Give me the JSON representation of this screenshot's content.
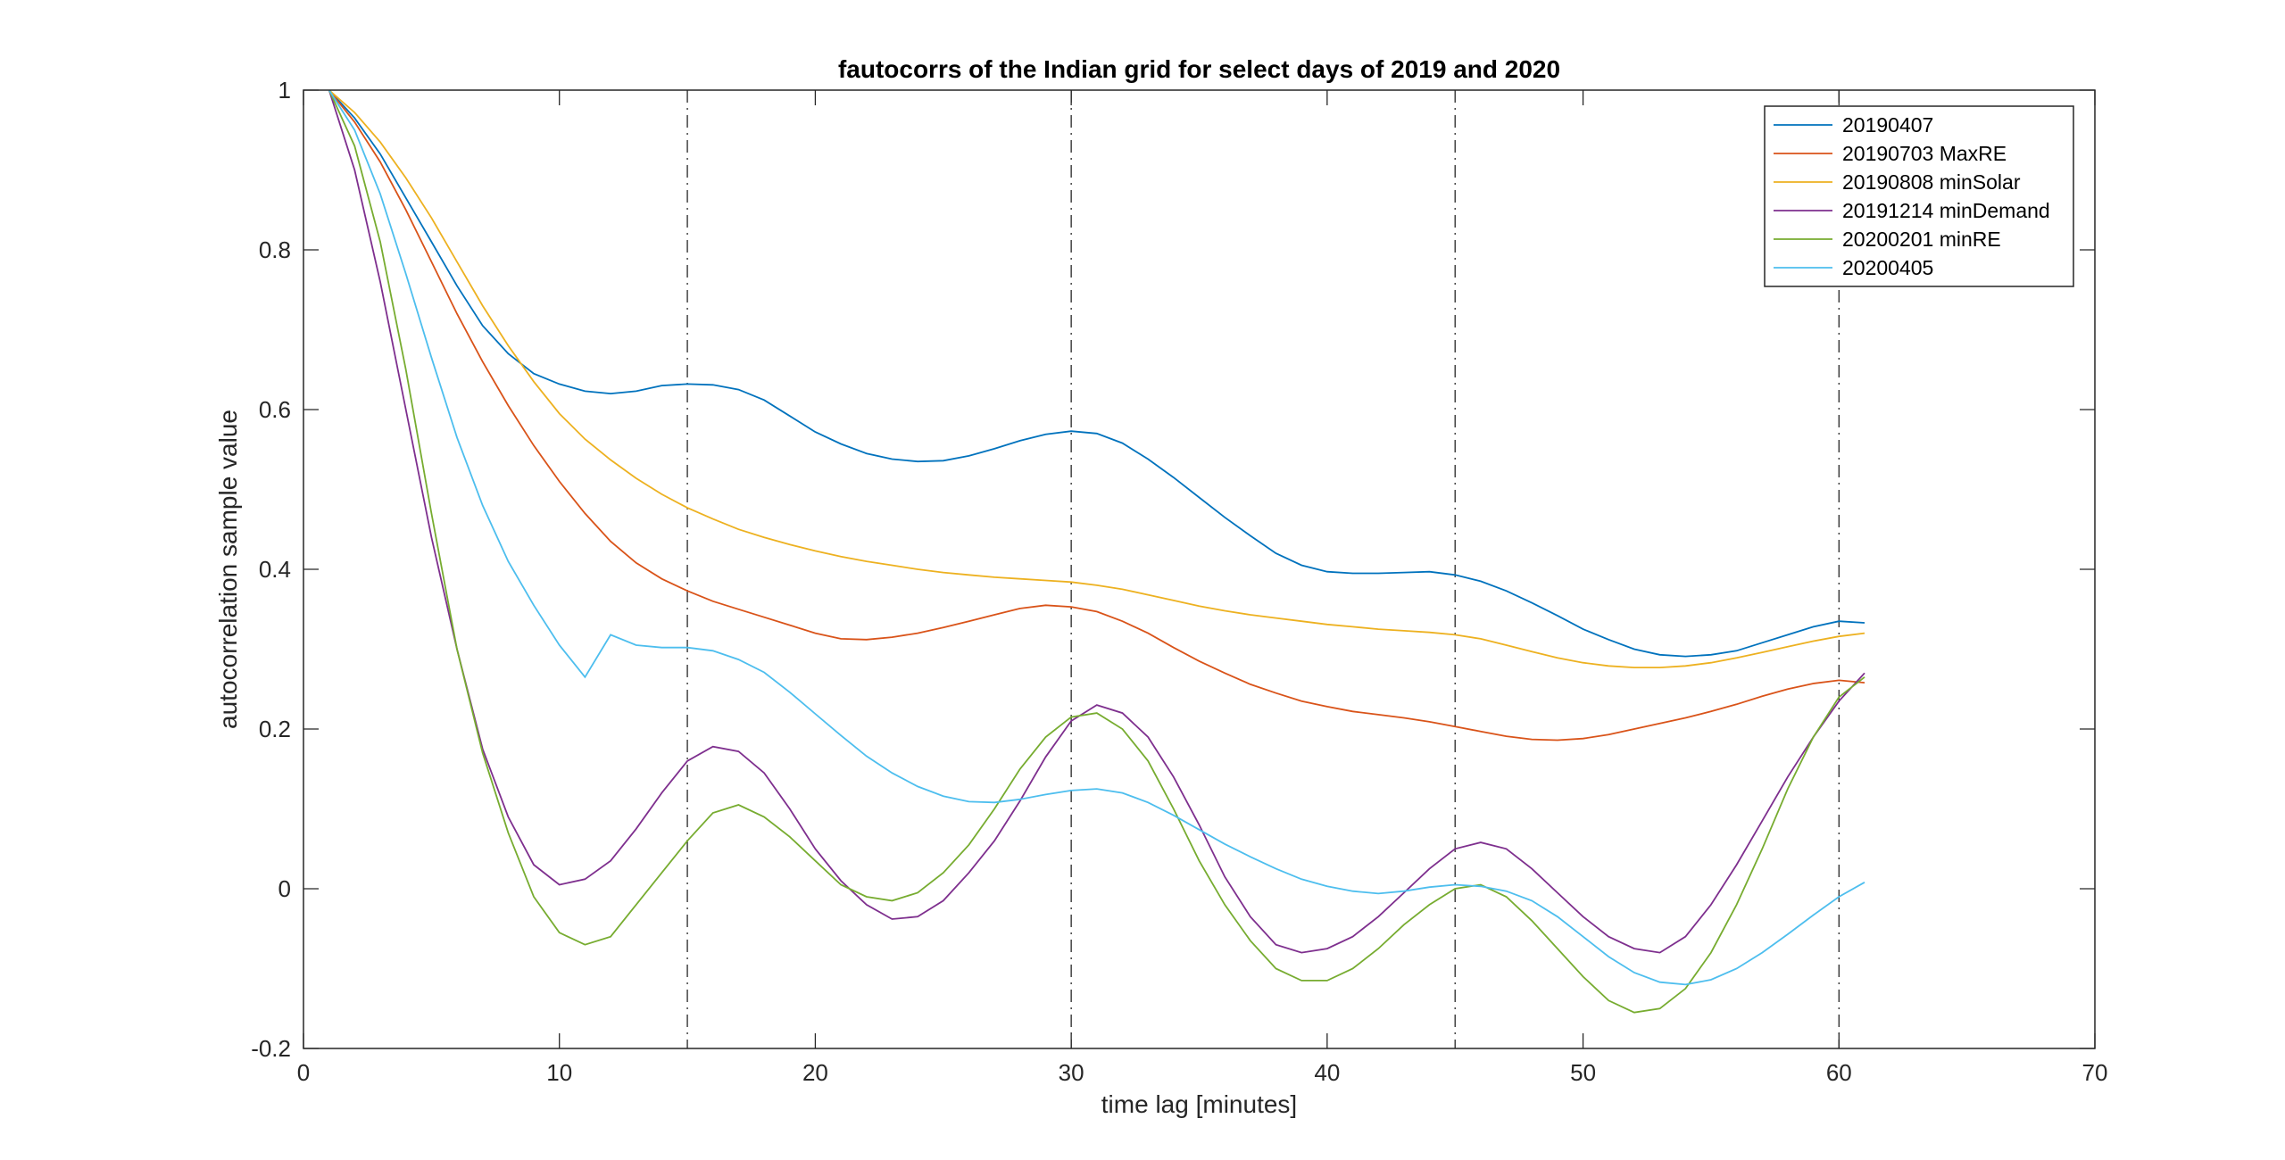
{
  "chart_data": {
    "type": "line",
    "title": "fautocorrs of the Indian grid for select days of 2019 and 2020",
    "xlabel": "time lag [minutes]",
    "ylabel": "autocorrelation sample value",
    "xlim": [
      0,
      70
    ],
    "ylim": [
      -0.2,
      1
    ],
    "xticks": [
      0,
      10,
      20,
      30,
      40,
      50,
      60,
      70
    ],
    "yticks": [
      -0.2,
      0,
      0.2,
      0.4,
      0.6,
      0.8,
      1
    ],
    "xtick_labels": [
      "0",
      "10",
      "20",
      "30",
      "40",
      "50",
      "60",
      "70"
    ],
    "ytick_labels": [
      "-0.2",
      "0",
      "0.2",
      "0.4",
      "0.6",
      "0.8",
      "1"
    ],
    "vlines": [
      15,
      30,
      45,
      60
    ],
    "grid": false,
    "legend_position": "top-right",
    "x": [
      1,
      2,
      3,
      4,
      5,
      6,
      7,
      8,
      9,
      10,
      11,
      12,
      13,
      14,
      15,
      16,
      17,
      18,
      19,
      20,
      21,
      22,
      23,
      24,
      25,
      26,
      27,
      28,
      29,
      30,
      31,
      32,
      33,
      34,
      35,
      36,
      37,
      38,
      39,
      40,
      41,
      42,
      43,
      44,
      45,
      46,
      47,
      48,
      49,
      50,
      51,
      52,
      53,
      54,
      55,
      56,
      57,
      58,
      59,
      60,
      61
    ],
    "series": [
      {
        "name": "20190407",
        "color": "#0072BD",
        "values": [
          1,
          0.965,
          0.92,
          0.865,
          0.81,
          0.755,
          0.705,
          0.67,
          0.645,
          0.632,
          0.623,
          0.62,
          0.623,
          0.63,
          0.632,
          0.631,
          0.625,
          0.612,
          0.592,
          0.572,
          0.557,
          0.545,
          0.538,
          0.535,
          0.536,
          0.542,
          0.551,
          0.561,
          0.569,
          0.573,
          0.57,
          0.558,
          0.538,
          0.515,
          0.49,
          0.465,
          0.442,
          0.42,
          0.405,
          0.397,
          0.395,
          0.395,
          0.396,
          0.397,
          0.393,
          0.385,
          0.373,
          0.358,
          0.342,
          0.325,
          0.312,
          0.3,
          0.293,
          0.291,
          0.293,
          0.298,
          0.308,
          0.318,
          0.328,
          0.335,
          0.333
        ]
      },
      {
        "name": "20190703 MaxRE",
        "color": "#D95319",
        "values": [
          1,
          0.96,
          0.91,
          0.85,
          0.785,
          0.72,
          0.66,
          0.605,
          0.555,
          0.51,
          0.47,
          0.435,
          0.408,
          0.388,
          0.373,
          0.36,
          0.35,
          0.34,
          0.33,
          0.32,
          0.313,
          0.312,
          0.315,
          0.32,
          0.327,
          0.335,
          0.343,
          0.351,
          0.355,
          0.353,
          0.347,
          0.335,
          0.32,
          0.302,
          0.285,
          0.27,
          0.256,
          0.245,
          0.235,
          0.228,
          0.222,
          0.218,
          0.214,
          0.209,
          0.203,
          0.197,
          0.191,
          0.187,
          0.186,
          0.188,
          0.193,
          0.2,
          0.207,
          0.214,
          0.222,
          0.231,
          0.241,
          0.25,
          0.257,
          0.261,
          0.258
        ]
      },
      {
        "name": "20190808 minSolar",
        "color": "#EDB120",
        "values": [
          1,
          0.972,
          0.935,
          0.89,
          0.84,
          0.785,
          0.73,
          0.68,
          0.635,
          0.595,
          0.563,
          0.537,
          0.514,
          0.494,
          0.477,
          0.463,
          0.45,
          0.44,
          0.431,
          0.423,
          0.416,
          0.41,
          0.405,
          0.4,
          0.396,
          0.393,
          0.39,
          0.388,
          0.386,
          0.384,
          0.38,
          0.375,
          0.368,
          0.361,
          0.354,
          0.348,
          0.343,
          0.339,
          0.335,
          0.331,
          0.328,
          0.325,
          0.323,
          0.321,
          0.318,
          0.313,
          0.305,
          0.297,
          0.289,
          0.283,
          0.279,
          0.277,
          0.277,
          0.279,
          0.283,
          0.289,
          0.296,
          0.303,
          0.31,
          0.316,
          0.32
        ]
      },
      {
        "name": "20191214 minDemand",
        "color": "#7E2F8E",
        "values": [
          1,
          0.9,
          0.76,
          0.6,
          0.44,
          0.3,
          0.175,
          0.09,
          0.03,
          0.005,
          0.012,
          0.035,
          0.075,
          0.12,
          0.16,
          0.178,
          0.172,
          0.145,
          0.1,
          0.05,
          0.01,
          -0.02,
          -0.038,
          -0.035,
          -0.015,
          0.02,
          0.06,
          0.11,
          0.165,
          0.21,
          0.23,
          0.22,
          0.19,
          0.14,
          0.08,
          0.015,
          -0.035,
          -0.07,
          -0.08,
          -0.075,
          -0.06,
          -0.035,
          -0.005,
          0.025,
          0.05,
          0.058,
          0.05,
          0.025,
          -0.005,
          -0.035,
          -0.06,
          -0.075,
          -0.08,
          -0.06,
          -0.02,
          0.03,
          0.085,
          0.14,
          0.19,
          0.235,
          0.27
        ]
      },
      {
        "name": "20200201 minRE",
        "color": "#77AC30",
        "values": [
          1,
          0.93,
          0.81,
          0.65,
          0.47,
          0.3,
          0.17,
          0.07,
          -0.01,
          -0.055,
          -0.07,
          -0.06,
          -0.02,
          0.02,
          0.06,
          0.095,
          0.105,
          0.09,
          0.065,
          0.035,
          0.005,
          -0.01,
          -0.015,
          -0.005,
          0.02,
          0.055,
          0.1,
          0.15,
          0.19,
          0.215,
          0.22,
          0.2,
          0.16,
          0.1,
          0.035,
          -0.02,
          -0.065,
          -0.1,
          -0.115,
          -0.115,
          -0.1,
          -0.075,
          -0.045,
          -0.02,
          0,
          0.005,
          -0.01,
          -0.04,
          -0.075,
          -0.11,
          -0.14,
          -0.155,
          -0.15,
          -0.125,
          -0.08,
          -0.02,
          0.05,
          0.125,
          0.19,
          0.24,
          0.265
        ]
      },
      {
        "name": "20200405",
        "color": "#4DBEEE",
        "values": [
          1,
          0.95,
          0.87,
          0.77,
          0.665,
          0.565,
          0.48,
          0.41,
          0.355,
          0.305,
          0.265,
          0.318,
          0.305,
          0.302,
          0.302,
          0.298,
          0.287,
          0.271,
          0.246,
          0.219,
          0.192,
          0.166,
          0.145,
          0.128,
          0.116,
          0.109,
          0.108,
          0.112,
          0.118,
          0.123,
          0.125,
          0.12,
          0.108,
          0.092,
          0.074,
          0.056,
          0.04,
          0.025,
          0.012,
          0.003,
          -0.003,
          -0.006,
          -0.003,
          0.002,
          0.005,
          0.003,
          -0.003,
          -0.015,
          -0.035,
          -0.06,
          -0.085,
          -0.105,
          -0.117,
          -0.12,
          -0.114,
          -0.1,
          -0.08,
          -0.057,
          -0.033,
          -0.01,
          0.008
        ]
      }
    ]
  }
}
